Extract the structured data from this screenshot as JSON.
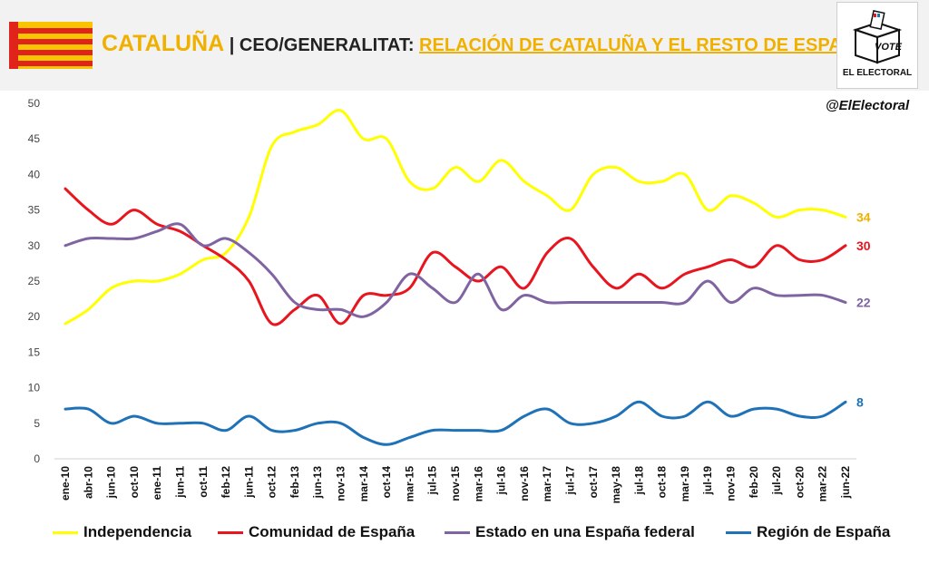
{
  "header": {
    "region": "CATALUÑA",
    "separator": "|",
    "source": "CEO/GENERALITAT:",
    "subtitle": "RELACIÓN DE CATALUÑA Y EL RESTO DE ESPAÑA"
  },
  "logo": {
    "ballot_text": "VOTE",
    "name": "EL ELECTORAL"
  },
  "handle": "@ElElectoral",
  "colors": {
    "independencia": "#ffff00",
    "comunidad": "#e8141e",
    "federal": "#8064a2",
    "region": "#1f72b8",
    "label_independencia": "#f0b000"
  },
  "chart_data": {
    "type": "line",
    "title": "",
    "xlabel": "",
    "ylabel": "",
    "ylim": [
      0,
      50
    ],
    "yticks": [
      "0",
      "5",
      "10",
      "15",
      "20",
      "25",
      "30",
      "35",
      "40",
      "45",
      "50"
    ],
    "grid": false,
    "legend_position": "bottom",
    "categories": [
      "ene-10",
      "abr-10",
      "jun-10",
      "oct-10",
      "ene-11",
      "jun-11",
      "oct-11",
      "feb-12",
      "jun-11",
      "oct-12",
      "feb-13",
      "jun-13",
      "nov-13",
      "mar-14",
      "oct-14",
      "mar-15",
      "jul-15",
      "nov-15",
      "mar-16",
      "jul-16",
      "nov-16",
      "mar-17",
      "jul-17",
      "oct-17",
      "may-18",
      "jul-18",
      "oct-18",
      "mar-19",
      "jul-19",
      "nov-19",
      "feb-20",
      "jul-20",
      "oct-20",
      "mar-22",
      "jun-22"
    ],
    "series": [
      {
        "name": "Independencia",
        "key": "independencia",
        "end_label": "34",
        "values": [
          19,
          21,
          24,
          25,
          25,
          26,
          28,
          29,
          34,
          44,
          46,
          47,
          49,
          45,
          45,
          39,
          38,
          41,
          39,
          42,
          39,
          37,
          35,
          40,
          41,
          39,
          39,
          40,
          35,
          37,
          36,
          34,
          35,
          35,
          34
        ]
      },
      {
        "name": "Comunidad de España",
        "key": "comunidad",
        "end_label": "30",
        "values": [
          38,
          35,
          33,
          35,
          33,
          32,
          30,
          28,
          25,
          19,
          21,
          23,
          19,
          23,
          23,
          24,
          29,
          27,
          25,
          27,
          24,
          29,
          31,
          27,
          24,
          26,
          24,
          26,
          27,
          28,
          27,
          30,
          28,
          28,
          30
        ]
      },
      {
        "name": "Estado en una España federal",
        "key": "federal",
        "end_label": "22",
        "values": [
          30,
          31,
          31,
          31,
          32,
          33,
          30,
          31,
          29,
          26,
          22,
          21,
          21,
          20,
          22,
          26,
          24,
          22,
          26,
          21,
          23,
          22,
          22,
          22,
          22,
          22,
          22,
          22,
          25,
          22,
          24,
          23,
          23,
          23,
          22
        ]
      },
      {
        "name": "Región de España",
        "key": "region",
        "end_label": "8",
        "values": [
          7,
          7,
          5,
          6,
          5,
          5,
          5,
          4,
          6,
          4,
          4,
          5,
          5,
          3,
          2,
          3,
          4,
          4,
          4,
          4,
          6,
          7,
          5,
          5,
          6,
          8,
          6,
          6,
          8,
          6,
          7,
          7,
          6,
          6,
          8
        ]
      }
    ]
  }
}
